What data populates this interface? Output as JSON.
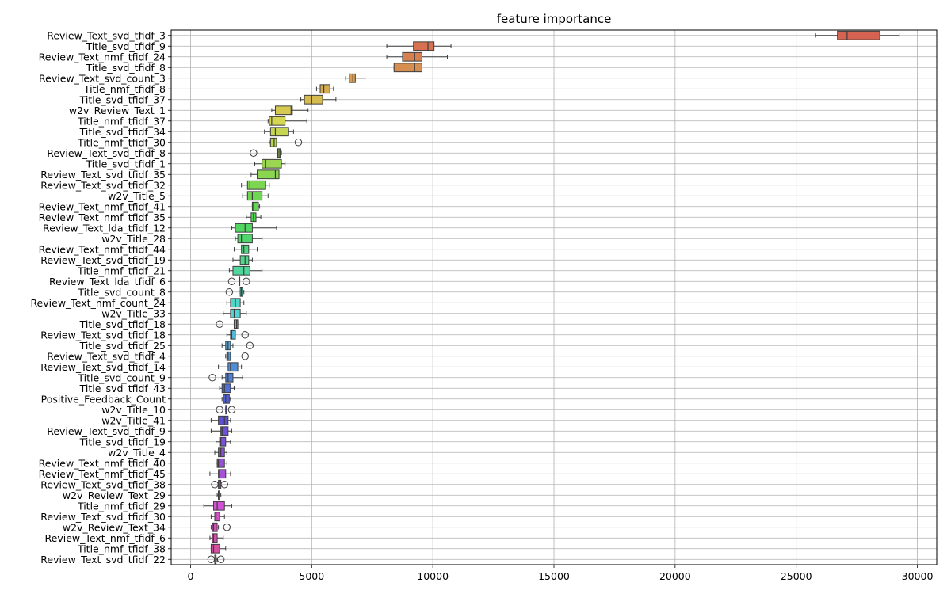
{
  "chart_data": {
    "type": "boxplot",
    "title": "feature importance",
    "xlabel": "",
    "ylabel": "",
    "xlim": [
      -800,
      30800
    ],
    "xticks": [
      0,
      5000,
      10000,
      15000,
      20000,
      25000,
      30000
    ],
    "xtick_labels": [
      "0",
      "5000",
      "10000",
      "15000",
      "20000",
      "25000",
      "30000"
    ],
    "grid": true,
    "palette": "husl",
    "features": [
      {
        "name": "Review_Text_svd_tfidf_3",
        "stats": [
          25800,
          26700,
          27100,
          28450,
          29250
        ],
        "outliers": []
      },
      {
        "name": "Title_svd_tfidf_9",
        "stats": [
          8100,
          9200,
          9800,
          10050,
          10750
        ],
        "outliers": []
      },
      {
        "name": "Review_Text_nmf_tfidf_24",
        "stats": [
          8100,
          8750,
          9250,
          9550,
          10600
        ],
        "outliers": []
      },
      {
        "name": "Title_svd_tfidf_8",
        "stats": [
          8400,
          8400,
          9250,
          9550,
          9550
        ],
        "outliers": []
      },
      {
        "name": "Review_Text_svd_count_3",
        "stats": [
          6400,
          6550,
          6700,
          6800,
          7200
        ],
        "outliers": []
      },
      {
        "name": "Title_nmf_tfidf_8",
        "stats": [
          5200,
          5350,
          5500,
          5750,
          5900
        ],
        "outliers": []
      },
      {
        "name": "Title_svd_tfidf_37",
        "stats": [
          4550,
          4700,
          5000,
          5450,
          6000
        ],
        "outliers": []
      },
      {
        "name": "w2v_Review_Text_1",
        "stats": [
          3350,
          3500,
          4150,
          4200,
          4850
        ],
        "outliers": []
      },
      {
        "name": "Title_nmf_tfidf_37",
        "stats": [
          3200,
          3250,
          3350,
          3900,
          4800
        ],
        "outliers": []
      },
      {
        "name": "Title_svd_tfidf_34",
        "stats": [
          3050,
          3300,
          3500,
          4050,
          4250
        ],
        "outliers": []
      },
      {
        "name": "Title_nmf_tfidf_30",
        "stats": [
          3250,
          3300,
          3450,
          3550,
          3550
        ],
        "outliers": [
          4450
        ]
      },
      {
        "name": "Review_Text_svd_tfidf_8",
        "stats": [
          3600,
          3600,
          3650,
          3700,
          3750
        ],
        "outliers": [
          2600
        ]
      },
      {
        "name": "Title_svd_tfidf_1",
        "stats": [
          2650,
          2950,
          3100,
          3750,
          3900
        ],
        "outliers": []
      },
      {
        "name": "Review_Text_svd_tfidf_35",
        "stats": [
          2500,
          2750,
          3500,
          3650,
          3650
        ],
        "outliers": []
      },
      {
        "name": "Review_Text_svd_tfidf_32",
        "stats": [
          2100,
          2350,
          2450,
          3100,
          3250
        ],
        "outliers": []
      },
      {
        "name": "w2v_Title_5",
        "stats": [
          2150,
          2350,
          2550,
          2950,
          3200
        ],
        "outliers": []
      },
      {
        "name": "Review_Text_nmf_tfidf_41",
        "stats": [
          2550,
          2550,
          2600,
          2800,
          2850
        ],
        "outliers": []
      },
      {
        "name": "Review_Text_nmf_tfidf_35",
        "stats": [
          2300,
          2500,
          2600,
          2700,
          2900
        ],
        "outliers": []
      },
      {
        "name": "Review_Text_lda_tfidf_12",
        "stats": [
          1700,
          1850,
          2250,
          2550,
          3550
        ],
        "outliers": []
      },
      {
        "name": "w2v_Title_28",
        "stats": [
          1850,
          1950,
          2100,
          2550,
          2950
        ],
        "outliers": []
      },
      {
        "name": "Review_Text_nmf_tfidf_44",
        "stats": [
          1800,
          2100,
          2200,
          2400,
          2750
        ],
        "outliers": []
      },
      {
        "name": "Review_Text_svd_tfidf_19",
        "stats": [
          1750,
          2050,
          2250,
          2400,
          2550
        ],
        "outliers": []
      },
      {
        "name": "Title_nmf_tfidf_21",
        "stats": [
          1600,
          1750,
          2200,
          2450,
          2950
        ],
        "outliers": []
      },
      {
        "name": "Review_Text_lda_tfidf_6",
        "stats": [
          2000,
          2000,
          2000,
          2000,
          2000
        ],
        "outliers": [
          1700,
          2300
        ]
      },
      {
        "name": "Title_svd_count_8",
        "stats": [
          2050,
          2050,
          2100,
          2150,
          2200
        ],
        "outliers": [
          1600
        ]
      },
      {
        "name": "Review_Text_nmf_count_24",
        "stats": [
          1500,
          1650,
          1850,
          2050,
          2200
        ],
        "outliers": []
      },
      {
        "name": "w2v_Title_33",
        "stats": [
          1350,
          1650,
          1800,
          2050,
          2300
        ],
        "outliers": []
      },
      {
        "name": "Title_svd_tfidf_18",
        "stats": [
          1800,
          1800,
          1900,
          1950,
          1950
        ],
        "outliers": [
          1200
        ]
      },
      {
        "name": "Review_Text_svd_tfidf_18",
        "stats": [
          1500,
          1650,
          1700,
          1850,
          1850
        ],
        "outliers": [
          2250
        ]
      },
      {
        "name": "Title_svd_tfidf_25",
        "stats": [
          1300,
          1450,
          1550,
          1650,
          1750
        ],
        "outliers": [
          2450
        ]
      },
      {
        "name": "Review_Text_svd_tfidf_4",
        "stats": [
          1450,
          1500,
          1550,
          1650,
          1650
        ],
        "outliers": [
          2250
        ]
      },
      {
        "name": "Review_Text_svd_tfidf_14",
        "stats": [
          1150,
          1550,
          1650,
          1950,
          2100
        ],
        "outliers": []
      },
      {
        "name": "Title_svd_count_9",
        "stats": [
          1300,
          1450,
          1550,
          1750,
          2150
        ],
        "outliers": [
          900
        ]
      },
      {
        "name": "Title_svd_tfidf_43",
        "stats": [
          1200,
          1300,
          1400,
          1650,
          1800
        ],
        "outliers": []
      },
      {
        "name": "Positive_Feedback_Count",
        "stats": [
          1300,
          1350,
          1450,
          1600,
          1650
        ],
        "outliers": []
      },
      {
        "name": "w2v_Title_10",
        "stats": [
          1450,
          1450,
          1500,
          1500,
          1500
        ],
        "outliers": [
          1200,
          1700
        ]
      },
      {
        "name": "w2v_Title_41",
        "stats": [
          850,
          1150,
          1400,
          1550,
          1650
        ],
        "outliers": []
      },
      {
        "name": "Review_Text_svd_tfidf_9",
        "stats": [
          850,
          1250,
          1300,
          1550,
          1700
        ],
        "outliers": []
      },
      {
        "name": "Title_svd_tfidf_19",
        "stats": [
          1050,
          1200,
          1250,
          1450,
          1650
        ],
        "outliers": []
      },
      {
        "name": "w2v_Title_4",
        "stats": [
          1000,
          1150,
          1250,
          1400,
          1500
        ],
        "outliers": []
      },
      {
        "name": "Review_Text_nmf_tfidf_40",
        "stats": [
          1050,
          1100,
          1150,
          1400,
          1500
        ],
        "outliers": []
      },
      {
        "name": "Review_Text_nmf_tfidf_45",
        "stats": [
          800,
          1150,
          1200,
          1450,
          1650
        ],
        "outliers": []
      },
      {
        "name": "Review_Text_svd_tfidf_38",
        "stats": [
          1150,
          1150,
          1200,
          1250,
          1250
        ],
        "outliers": [
          1000,
          1400
        ]
      },
      {
        "name": "w2v_Review_Text_29",
        "stats": [
          1100,
          1150,
          1150,
          1200,
          1250
        ],
        "outliers": []
      },
      {
        "name": "Title_nmf_tfidf_29",
        "stats": [
          550,
          950,
          1100,
          1400,
          1700
        ],
        "outliers": []
      },
      {
        "name": "Review_Text_svd_tfidf_30",
        "stats": [
          850,
          1000,
          1050,
          1200,
          1400
        ],
        "outliers": []
      },
      {
        "name": "w2v_Review_Text_34",
        "stats": [
          850,
          900,
          950,
          1100,
          1150
        ],
        "outliers": [
          1500
        ]
      },
      {
        "name": "Review_Text_nmf_tfidf_6",
        "stats": [
          800,
          900,
          950,
          1100,
          1350
        ],
        "outliers": []
      },
      {
        "name": "Title_nmf_tfidf_38",
        "stats": [
          850,
          850,
          950,
          1200,
          1450
        ],
        "outliers": []
      },
      {
        "name": "Review_Text_svd_tfidf_22",
        "stats": [
          1000,
          1000,
          1050,
          1050,
          1100
        ],
        "outliers": [
          850,
          1250
        ]
      }
    ]
  }
}
